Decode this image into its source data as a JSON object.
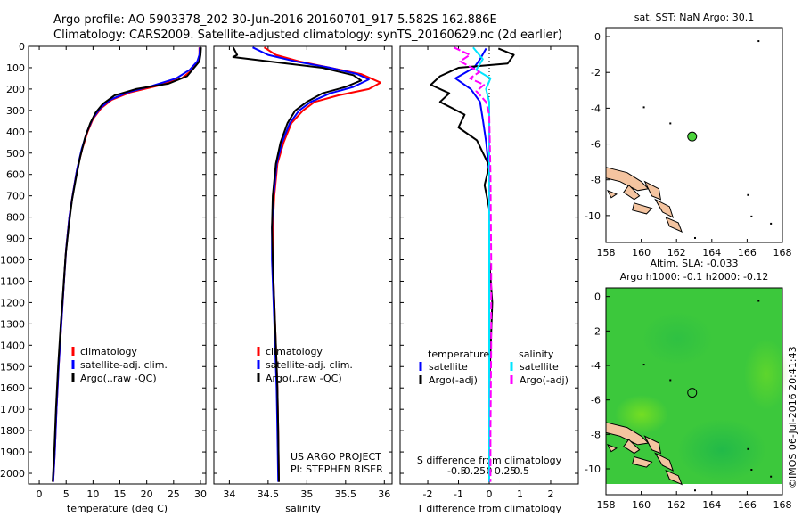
{
  "header": {
    "line1": "Argo profile: AO 5903378_202 30-Jun-2016 20160701_917 5.582S 162.886E",
    "line2": "Climatology: CARS2009. Satellite-adjusted climatology: synTS_20160629.nc (2d earlier)"
  },
  "colors": {
    "climatology": "#ff0000",
    "satellite": "#0000ff",
    "argo": "#000000",
    "sat_salinity": "#00e5ff",
    "argo_salinity": "#ff00ff",
    "land": "#f4c4a0",
    "sla_field": "#2ecc2e"
  },
  "chart_data": [
    {
      "id": "temperature",
      "type": "line",
      "xlabel": "temperature (deg C)",
      "ylabel": "",
      "xlim": [
        -2,
        31
      ],
      "xticks": [
        0,
        5,
        10,
        15,
        20,
        25,
        30
      ],
      "ylim": [
        0,
        2050
      ],
      "yticks": [
        0,
        100,
        200,
        300,
        400,
        500,
        600,
        700,
        800,
        900,
        1000,
        1100,
        1200,
        1300,
        1400,
        1500,
        1600,
        1700,
        1800,
        1900,
        2000
      ],
      "legend": {
        "entries": [
          "climatology",
          "satellite-adj. clim.",
          "Argo(..raw -QC)"
        ],
        "position": "lower-middle"
      },
      "series": [
        {
          "name": "climatology",
          "color": "#ff0000",
          "points": [
            [
              29.8,
              5
            ],
            [
              29.8,
              40
            ],
            [
              29.5,
              70
            ],
            [
              28.5,
              110
            ],
            [
              26.5,
              150
            ],
            [
              22,
              185
            ],
            [
              17,
              215
            ],
            [
              13.5,
              250
            ],
            [
              11.5,
              290
            ],
            [
              10,
              340
            ],
            [
              9,
              400
            ],
            [
              8,
              480
            ],
            [
              7,
              580
            ],
            [
              6.2,
              700
            ],
            [
              5.6,
              800
            ],
            [
              5,
              950
            ],
            [
              4.6,
              1100
            ],
            [
              4.1,
              1300
            ],
            [
              3.6,
              1500
            ],
            [
              3.2,
              1700
            ],
            [
              2.9,
              1900
            ],
            [
              2.6,
              2040
            ]
          ]
        },
        {
          "name": "satellite-adj. clim.",
          "color": "#0000ff",
          "points": [
            [
              29.9,
              5
            ],
            [
              29.8,
              40
            ],
            [
              29.4,
              70
            ],
            [
              28,
              110
            ],
            [
              25.5,
              150
            ],
            [
              21,
              185
            ],
            [
              16.5,
              215
            ],
            [
              13.2,
              250
            ],
            [
              11.3,
              290
            ],
            [
              9.9,
              340
            ],
            [
              8.9,
              400
            ],
            [
              7.9,
              480
            ],
            [
              7,
              580
            ],
            [
              6.2,
              700
            ],
            [
              5.6,
              800
            ],
            [
              5,
              950
            ],
            [
              4.6,
              1100
            ],
            [
              4.1,
              1300
            ],
            [
              3.6,
              1500
            ],
            [
              3.2,
              1700
            ],
            [
              2.9,
              1900
            ],
            [
              2.6,
              2040
            ]
          ]
        },
        {
          "name": "Argo(..raw -QC)",
          "color": "#000000",
          "points": [
            [
              30.1,
              5
            ],
            [
              30,
              40
            ],
            [
              29.8,
              70
            ],
            [
              29,
              95
            ],
            [
              27.5,
              140
            ],
            [
              24,
              175
            ],
            [
              18,
              200
            ],
            [
              14,
              230
            ],
            [
              11.8,
              270
            ],
            [
              10.5,
              310
            ],
            [
              9.5,
              360
            ],
            [
              8.5,
              430
            ],
            [
              7.6,
              520
            ],
            [
              6.8,
              620
            ],
            [
              6.1,
              720
            ],
            [
              5.5,
              840
            ],
            [
              4.9,
              980
            ],
            [
              4.5,
              1130
            ],
            [
              4,
              1300
            ],
            [
              3.5,
              1500
            ],
            [
              3.1,
              1700
            ],
            [
              2.8,
              1900
            ],
            [
              2.5,
              2040
            ]
          ]
        }
      ]
    },
    {
      "id": "salinity",
      "type": "line",
      "xlabel": "salinity",
      "xlim": [
        33.8,
        36.1
      ],
      "xticks": [
        34,
        34.5,
        35,
        35.5,
        36
      ],
      "ylim": [
        0,
        2050
      ],
      "legend": {
        "entries": [
          "climatology",
          "satellite-adj. clim.",
          "Argo(..raw -QC)"
        ],
        "position": "lower-middle"
      },
      "annotation": [
        "US ARGO PROJECT",
        "PI: STEPHEN RISER"
      ],
      "series": [
        {
          "name": "climatology",
          "color": "#ff0000",
          "points": [
            [
              34.45,
              5
            ],
            [
              34.6,
              40
            ],
            [
              34.9,
              70
            ],
            [
              35.3,
              100
            ],
            [
              35.7,
              130
            ],
            [
              35.95,
              170
            ],
            [
              35.8,
              200
            ],
            [
              35.4,
              230
            ],
            [
              35.1,
              260
            ],
            [
              34.95,
              300
            ],
            [
              34.8,
              360
            ],
            [
              34.7,
              450
            ],
            [
              34.62,
              550
            ],
            [
              34.58,
              700
            ],
            [
              34.56,
              850
            ],
            [
              34.56,
              1000
            ],
            [
              34.58,
              1200
            ],
            [
              34.6,
              1400
            ],
            [
              34.62,
              1600
            ],
            [
              34.63,
              1800
            ],
            [
              34.64,
              2040
            ]
          ]
        },
        {
          "name": "satellite-adj. clim.",
          "color": "#0000ff",
          "points": [
            [
              34.3,
              5
            ],
            [
              34.5,
              40
            ],
            [
              34.85,
              70
            ],
            [
              35.3,
              100
            ],
            [
              35.65,
              130
            ],
            [
              35.8,
              155
            ],
            [
              35.6,
              190
            ],
            [
              35.3,
              220
            ],
            [
              35.05,
              260
            ],
            [
              34.9,
              300
            ],
            [
              34.78,
              360
            ],
            [
              34.68,
              450
            ],
            [
              34.61,
              550
            ],
            [
              34.57,
              700
            ],
            [
              34.55,
              850
            ],
            [
              34.55,
              1000
            ],
            [
              34.57,
              1200
            ],
            [
              34.59,
              1400
            ],
            [
              34.61,
              1600
            ],
            [
              34.62,
              1800
            ],
            [
              34.63,
              2040
            ]
          ]
        },
        {
          "name": "Argo(..raw -QC)",
          "color": "#000000",
          "points": [
            [
              34.05,
              5
            ],
            [
              34.1,
              40
            ],
            [
              34.05,
              50
            ],
            [
              34.5,
              70
            ],
            [
              35.2,
              100
            ],
            [
              35.6,
              135
            ],
            [
              35.7,
              160
            ],
            [
              35.5,
              190
            ],
            [
              35.2,
              220
            ],
            [
              35,
              260
            ],
            [
              34.85,
              300
            ],
            [
              34.75,
              360
            ],
            [
              34.66,
              450
            ],
            [
              34.6,
              550
            ],
            [
              34.56,
              700
            ],
            [
              34.55,
              850
            ],
            [
              34.56,
              1000
            ],
            [
              34.58,
              1200
            ],
            [
              34.6,
              1400
            ],
            [
              34.62,
              1600
            ],
            [
              34.63,
              1800
            ],
            [
              34.64,
              2040
            ]
          ]
        }
      ]
    },
    {
      "id": "difference",
      "type": "line",
      "xlabel": "T difference from climatology",
      "x2label": "S difference from climatology",
      "xlim": [
        -2.9,
        2.9
      ],
      "xticks": [
        -2,
        -1,
        0,
        1,
        2
      ],
      "s_ticks": [
        -0.5,
        -0.25,
        0,
        0.25,
        0.5
      ],
      "ylim": [
        0,
        2050
      ],
      "legend": {
        "temperature_header": "temperature",
        "salinity_header": "salinity",
        "entries": [
          "satellite",
          "Argo(-adj)",
          "satellite",
          "Argo(-adj)"
        ]
      },
      "series": [
        {
          "name": "temperature satellite",
          "color": "#0000ff",
          "points": [
            [
              -0.1,
              10
            ],
            [
              -0.3,
              60
            ],
            [
              -0.5,
              100
            ],
            [
              -1.1,
              150
            ],
            [
              -0.6,
              200
            ],
            [
              -0.3,
              260
            ],
            [
              -0.2,
              350
            ],
            [
              -0.1,
              450
            ],
            [
              0,
              600
            ],
            [
              0,
              1000
            ],
            [
              0,
              1500
            ],
            [
              0,
              2040
            ]
          ]
        },
        {
          "name": "temperature Argo(-adj)",
          "color": "#000000",
          "points": [
            [
              0.3,
              10
            ],
            [
              0.8,
              40
            ],
            [
              0.6,
              80
            ],
            [
              -1.0,
              100
            ],
            [
              -1.6,
              140
            ],
            [
              -1.9,
              180
            ],
            [
              -1.3,
              220
            ],
            [
              -1.6,
              260
            ],
            [
              -0.8,
              320
            ],
            [
              -1.0,
              380
            ],
            [
              -0.4,
              440
            ],
            [
              -0.2,
              500
            ],
            [
              0,
              560
            ],
            [
              -0.15,
              650
            ],
            [
              0,
              760
            ],
            [
              0,
              1000
            ],
            [
              0.1,
              1200
            ],
            [
              0,
              1600
            ],
            [
              0,
              2040
            ]
          ]
        },
        {
          "name": "salinity satellite",
          "color": "#00e5ff",
          "points": [
            [
              -0.25,
              5
            ],
            [
              -0.1,
              60
            ],
            [
              -0.2,
              110
            ],
            [
              0.02,
              150
            ],
            [
              -0.05,
              200
            ],
            [
              0,
              260
            ],
            [
              0,
              400
            ],
            [
              0,
              800
            ],
            [
              0,
              1500
            ],
            [
              0,
              2040
            ]
          ]
        },
        {
          "name": "salinity Argo(-adj)",
          "color": "#ff00ff",
          "points": [
            [
              -0.55,
              5
            ],
            [
              -0.3,
              40
            ],
            [
              -0.45,
              70
            ],
            [
              -0.15,
              120
            ],
            [
              -0.3,
              150
            ],
            [
              -0.08,
              180
            ],
            [
              -0.2,
              210
            ],
            [
              -0.05,
              260
            ],
            [
              0,
              320
            ],
            [
              0.02,
              600
            ],
            [
              0.03,
              1000
            ],
            [
              0.03,
              1400
            ],
            [
              0.02,
              1800
            ],
            [
              0.02,
              2040
            ]
          ]
        }
      ]
    },
    {
      "id": "sst-map",
      "type": "scatter",
      "title": "sat. SST: NaN Argo: 30.1",
      "xlim": [
        158,
        168
      ],
      "xticks": [
        158,
        160,
        162,
        164,
        166,
        168
      ],
      "ylim": [
        -11.5,
        0.5
      ],
      "yticks": [
        0,
        -2,
        -4,
        -6,
        -8,
        -10
      ],
      "points": [
        {
          "lon": 162.886,
          "lat": -5.582,
          "label": "Argo float"
        }
      ]
    },
    {
      "id": "sla-map",
      "type": "heatmap",
      "title": "Altim. SLA: -0.033",
      "subtitle": "Argo h1000: -0.1 h2000: -0.12",
      "xlim": [
        158,
        168
      ],
      "xticks": [
        158,
        160,
        162,
        164,
        166,
        168
      ],
      "ylim": [
        -11.5,
        0.5
      ],
      "yticks": [
        0,
        -2,
        -4,
        -6,
        -8,
        -10
      ],
      "points": [
        {
          "lon": 162.886,
          "lat": -5.582,
          "label": "Argo float"
        }
      ]
    }
  ],
  "watermark": "©IMOS 06-Jul-2016 20:41:43"
}
